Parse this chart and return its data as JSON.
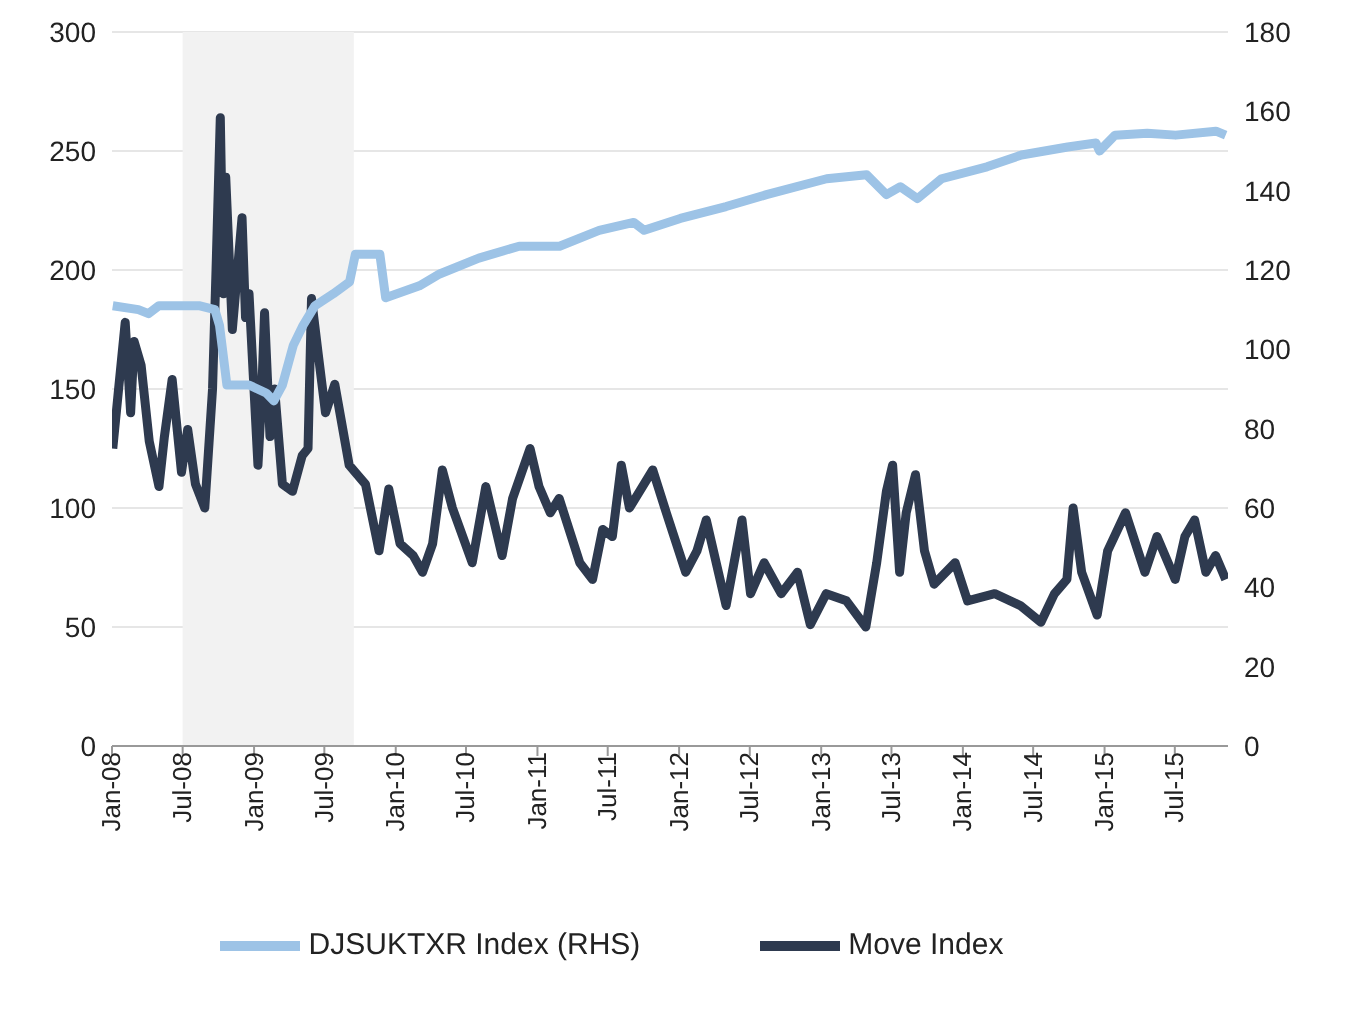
{
  "chart_data": {
    "type": "line",
    "xlim": [
      "2008-01-01",
      "2015-11-15"
    ],
    "xticks": [
      {
        "value": "2008-01-01",
        "label": "Jan-08"
      },
      {
        "value": "2008-07-01",
        "label": "Jul-08"
      },
      {
        "value": "2009-01-01",
        "label": "Jan-09"
      },
      {
        "value": "2009-07-01",
        "label": "Jul-09"
      },
      {
        "value": "2010-01-01",
        "label": "Jan-10"
      },
      {
        "value": "2010-07-01",
        "label": "Jul-10"
      },
      {
        "value": "2011-01-01",
        "label": "Jan-11"
      },
      {
        "value": "2011-07-01",
        "label": "Jul-11"
      },
      {
        "value": "2012-01-01",
        "label": "Jan-12"
      },
      {
        "value": "2012-07-01",
        "label": "Jul-12"
      },
      {
        "value": "2013-01-01",
        "label": "Jan-13"
      },
      {
        "value": "2013-07-01",
        "label": "Jul-13"
      },
      {
        "value": "2014-01-01",
        "label": "Jan-14"
      },
      {
        "value": "2014-07-01",
        "label": "Jul-14"
      },
      {
        "value": "2015-01-01",
        "label": "Jan-15"
      },
      {
        "value": "2015-07-01",
        "label": "Jul-15"
      }
    ],
    "ylim": [
      0,
      300
    ],
    "yticks": [
      0,
      50,
      100,
      150,
      200,
      250,
      300
    ],
    "y2lim": [
      0,
      180
    ],
    "y2ticks": [
      0,
      20,
      40,
      60,
      80,
      100,
      120,
      140,
      160,
      180
    ],
    "grid": "y",
    "legend": "bottom",
    "marker": "none",
    "line_style": "solid",
    "bands": [
      {
        "axis": "x",
        "from": "2008-07-01",
        "to": "2009-09-15",
        "color": "#f2f2f2"
      }
    ],
    "series": [
      {
        "name": "Move Index",
        "color": "#2e3a4f",
        "x": [
          "2008-01-03",
          "2008-01-18",
          "2008-02-04",
          "2008-02-18",
          "2008-02-27",
          "2008-03-16",
          "2008-04-06",
          "2008-05-01",
          "2008-05-15",
          "2008-06-04",
          "2008-06-28",
          "2008-07-14",
          "2008-08-03",
          "2008-08-27",
          "2008-09-16",
          "2008-09-25",
          "2008-10-06",
          "2008-10-14",
          "2008-10-20",
          "2008-11-06",
          "2008-12-01",
          "2008-12-10",
          "2008-12-19",
          "2009-01-11",
          "2009-01-20",
          "2009-01-28",
          "2009-02-11",
          "2009-02-23",
          "2009-03-15",
          "2009-04-10",
          "2009-05-05",
          "2009-05-20",
          "2009-05-29",
          "2009-06-15",
          "2009-07-04",
          "2009-07-28",
          "2009-09-03",
          "2009-10-15",
          "2009-11-19",
          "2009-12-14",
          "2010-01-12",
          "2010-02-15",
          "2010-03-11",
          "2010-04-06",
          "2010-05-01",
          "2010-05-27",
          "2010-07-17",
          "2010-08-21",
          "2010-10-02",
          "2010-10-29",
          "2010-12-13",
          "2011-01-05",
          "2011-02-03",
          "2011-02-26",
          "2011-04-20",
          "2011-05-23",
          "2011-06-18",
          "2011-07-13",
          "2011-08-05",
          "2011-08-26",
          "2011-10-25",
          "2011-11-29",
          "2012-01-18",
          "2012-02-16",
          "2012-03-11",
          "2012-05-01",
          "2012-06-11",
          "2012-07-03",
          "2012-08-07",
          "2012-09-20",
          "2012-11-01",
          "2012-12-04",
          "2013-01-14",
          "2013-03-07",
          "2013-04-26",
          "2013-05-24",
          "2013-06-18",
          "2013-07-04",
          "2013-07-22",
          "2013-08-08",
          "2013-09-01",
          "2013-09-24",
          "2013-10-19",
          "2013-12-12",
          "2014-01-13",
          "2014-03-24",
          "2014-05-29",
          "2014-07-21",
          "2014-08-25",
          "2014-09-26",
          "2014-10-12",
          "2014-11-03",
          "2014-12-13",
          "2015-01-09",
          "2015-02-24",
          "2015-04-15",
          "2015-05-16",
          "2015-07-02",
          "2015-07-27",
          "2015-08-21",
          "2015-09-19",
          "2015-10-14",
          "2015-11-09"
        ],
        "values": [
          125,
          150,
          178,
          140,
          170,
          160,
          128,
          109,
          130,
          154,
          115,
          133,
          110,
          100,
          150,
          200,
          264,
          190,
          239,
          175,
          222,
          180,
          190,
          118,
          145,
          182,
          130,
          150,
          110,
          107,
          122,
          125,
          188,
          165,
          140,
          152,
          118,
          110,
          82,
          108,
          85,
          80,
          73,
          85,
          116,
          100,
          77,
          109,
          80,
          104,
          125,
          109,
          98,
          104,
          77,
          70,
          91,
          88,
          118,
          100,
          116,
          98,
          73,
          82,
          95,
          59,
          95,
          64,
          77,
          64,
          73,
          51,
          64,
          61,
          50,
          77,
          107,
          118,
          73,
          98,
          114,
          82,
          68,
          77,
          61,
          64,
          59,
          52,
          64,
          70,
          100,
          73,
          55,
          82,
          98,
          73,
          88,
          70,
          88,
          95,
          73,
          80,
          70
        ]
      },
      {
        "name": "DJSUKTXR Index (RHS)",
        "color": "#9dc3e6",
        "axis": "y2",
        "x": [
          "2008-01-03",
          "2008-03-09",
          "2008-04-04",
          "2008-05-01",
          "2008-08-12",
          "2008-09-22",
          "2008-10-04",
          "2008-10-23",
          "2008-12-19",
          "2009-02-01",
          "2009-02-21",
          "2009-03-15",
          "2009-04-12",
          "2009-05-07",
          "2009-06-07",
          "2009-07-24",
          "2009-09-04",
          "2009-09-19",
          "2009-11-21",
          "2009-12-06",
          "2010-03-03",
          "2010-04-24",
          "2010-08-03",
          "2010-11-15",
          "2011-02-27",
          "2011-06-09",
          "2011-09-06",
          "2011-10-03",
          "2012-01-04",
          "2012-05-01",
          "2012-08-13",
          "2013-01-15",
          "2013-04-28",
          "2013-06-18",
          "2013-07-24",
          "2013-09-06",
          "2013-11-07",
          "2014-03-04",
          "2014-06-01",
          "2014-09-28",
          "2014-12-10",
          "2014-12-19",
          "2015-01-28",
          "2015-04-21",
          "2015-07-03",
          "2015-10-15",
          "2015-11-09"
        ],
        "values": [
          111,
          110,
          109,
          111,
          111,
          110,
          106,
          91,
          91,
          89,
          87,
          91,
          101,
          106,
          111,
          114,
          117,
          124,
          124,
          113,
          116,
          119,
          123,
          126,
          126,
          130,
          132,
          130,
          133,
          136,
          139,
          143,
          144,
          139,
          141,
          138,
          143,
          146,
          149,
          151,
          152,
          150,
          154,
          154.5,
          154,
          155,
          154
        ]
      }
    ]
  }
}
